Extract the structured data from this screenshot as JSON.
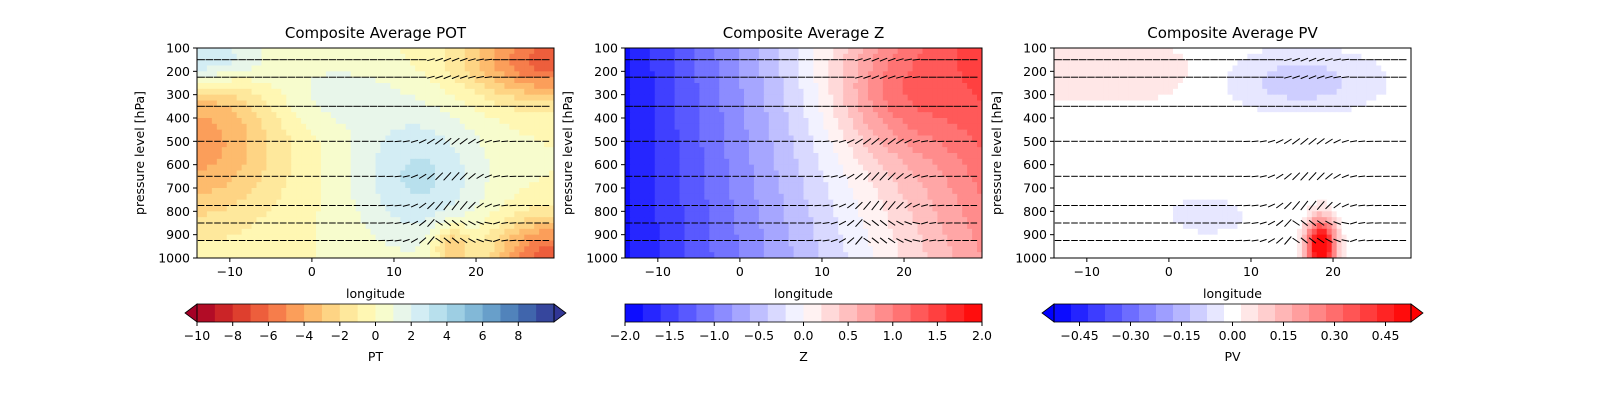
{
  "chart_data": [
    {
      "type": "heatmap",
      "title": "Composite Average POT",
      "xlabel": "longitude",
      "ylabel": "pressure level [hPa]",
      "xlim": [
        -14,
        29.5
      ],
      "ylim": [
        1000,
        100
      ],
      "xticks": [
        "−10",
        "0",
        "10",
        "20"
      ],
      "xtick_values": [
        -10,
        0,
        10,
        20
      ],
      "yticks": [
        "100",
        "200",
        "300",
        "400",
        "500",
        "600",
        "700",
        "800",
        "900",
        "1000"
      ],
      "ytick_values": [
        100,
        200,
        300,
        400,
        500,
        600,
        700,
        800,
        900,
        1000
      ],
      "colormap": "RdYlBu",
      "colorbar": {
        "label": "PT",
        "range": [
          -10,
          10
        ],
        "levels": [
          -10,
          -9,
          -8,
          -7,
          -6,
          -5,
          -4,
          -3,
          -2,
          -1,
          0,
          1,
          2,
          3,
          4,
          5,
          6,
          7,
          8,
          9
        ],
        "ticks": [
          "−10",
          "−8",
          "−6",
          "−4",
          "−2",
          "0",
          "2",
          "4",
          "6",
          "8"
        ],
        "tick_values": [
          -10,
          -8,
          -6,
          -4,
          -2,
          0,
          2,
          4,
          6,
          8
        ],
        "extend": "both"
      },
      "colors": [
        "#a50026",
        "#d73027",
        "#f46d43",
        "#fdae61",
        "#fee090",
        "#ffffbf",
        "#e0f3f8",
        "#abd9e9",
        "#74add1",
        "#4575b4",
        "#313695"
      ],
      "field_sketch": "warm west mid-levels (~-4), near-neutral centre (~0-2), cold trough 8-18 at 400-900 hPa (~3-4), warm upper east and lower east (~-6)",
      "quiver_levels": [
        150,
        225,
        350,
        500,
        650,
        775,
        850,
        925
      ]
    },
    {
      "type": "heatmap",
      "title": "Composite Average Z",
      "xlabel": "longitude",
      "ylabel": "pressure level [hPa]",
      "xlim": [
        -14,
        29.5
      ],
      "ylim": [
        1000,
        100
      ],
      "xticks": [
        "−10",
        "0",
        "10",
        "20"
      ],
      "xtick_values": [
        -10,
        0,
        10,
        20
      ],
      "yticks": [
        "100",
        "200",
        "300",
        "400",
        "500",
        "600",
        "700",
        "800",
        "900",
        "1000"
      ],
      "ytick_values": [
        100,
        200,
        300,
        400,
        500,
        600,
        700,
        800,
        900,
        1000
      ],
      "colormap": "bwr",
      "colorbar": {
        "label": "Z",
        "range": [
          -2.0,
          2.0
        ],
        "levels": [
          -2.0,
          -1.8,
          -1.6,
          -1.4,
          -1.2,
          -1.0,
          -0.8,
          -0.6,
          -0.4,
          -0.2,
          0.0,
          0.2,
          0.4,
          0.6,
          0.8,
          1.0,
          1.2,
          1.4,
          1.6,
          1.8
        ],
        "ticks": [
          "−2.0",
          "−1.5",
          "−1.0",
          "−0.5",
          "0.0",
          "0.5",
          "1.0",
          "1.5",
          "2.0"
        ],
        "tick_values": [
          -2.0,
          -1.5,
          -1.0,
          -0.5,
          0.0,
          0.5,
          1.0,
          1.5,
          2.0
        ],
        "extend": "neither"
      },
      "colors": [
        "#0000ff",
        "#ffffff",
        "#ff0000"
      ],
      "field_sketch": "strong negative upper west (~-1.9), zero crossing near lon 3-5, positive maximum ~1.3 near lon 18 at 300 hPa",
      "quiver_levels": [
        150,
        225,
        350,
        500,
        650,
        775,
        850,
        925
      ]
    },
    {
      "type": "heatmap",
      "title": "Composite Average PV",
      "xlabel": "longitude",
      "ylabel": "pressure level [hPa]",
      "xlim": [
        -14,
        29.5
      ],
      "ylim": [
        1000,
        100
      ],
      "xticks": [
        "−10",
        "0",
        "10",
        "20"
      ],
      "xtick_values": [
        -10,
        0,
        10,
        20
      ],
      "yticks": [
        "100",
        "200",
        "300",
        "400",
        "500",
        "600",
        "700",
        "800",
        "900",
        "1000"
      ],
      "ytick_values": [
        100,
        200,
        300,
        400,
        500,
        600,
        700,
        800,
        900,
        1000
      ],
      "colormap": "bwr",
      "colorbar": {
        "label": "PV",
        "range": [
          -0.525,
          0.525
        ],
        "levels": [
          -0.525,
          -0.475,
          -0.425,
          -0.375,
          -0.325,
          -0.275,
          -0.225,
          -0.175,
          -0.125,
          -0.075,
          -0.025,
          0.025,
          0.075,
          0.125,
          0.175,
          0.225,
          0.275,
          0.325,
          0.375,
          0.425,
          0.475
        ],
        "ticks": [
          "−0.45",
          "−0.30",
          "−0.15",
          "0.00",
          "0.15",
          "0.30",
          "0.45"
        ],
        "tick_values": [
          -0.45,
          -0.3,
          -0.15,
          0.0,
          0.15,
          0.3,
          0.45
        ],
        "extend": "both"
      },
      "colors": [
        "#0000ff",
        "#ffffff",
        "#ff0000"
      ],
      "field_sketch": "weak positive upper west (~0.05), weak negative upper east (~-0.1), strong positive low-level maximum ~0.6 near lon 18.5 at 950 hPa",
      "quiver_levels": [
        150,
        225,
        350,
        500,
        650,
        775,
        850,
        925
      ]
    }
  ]
}
